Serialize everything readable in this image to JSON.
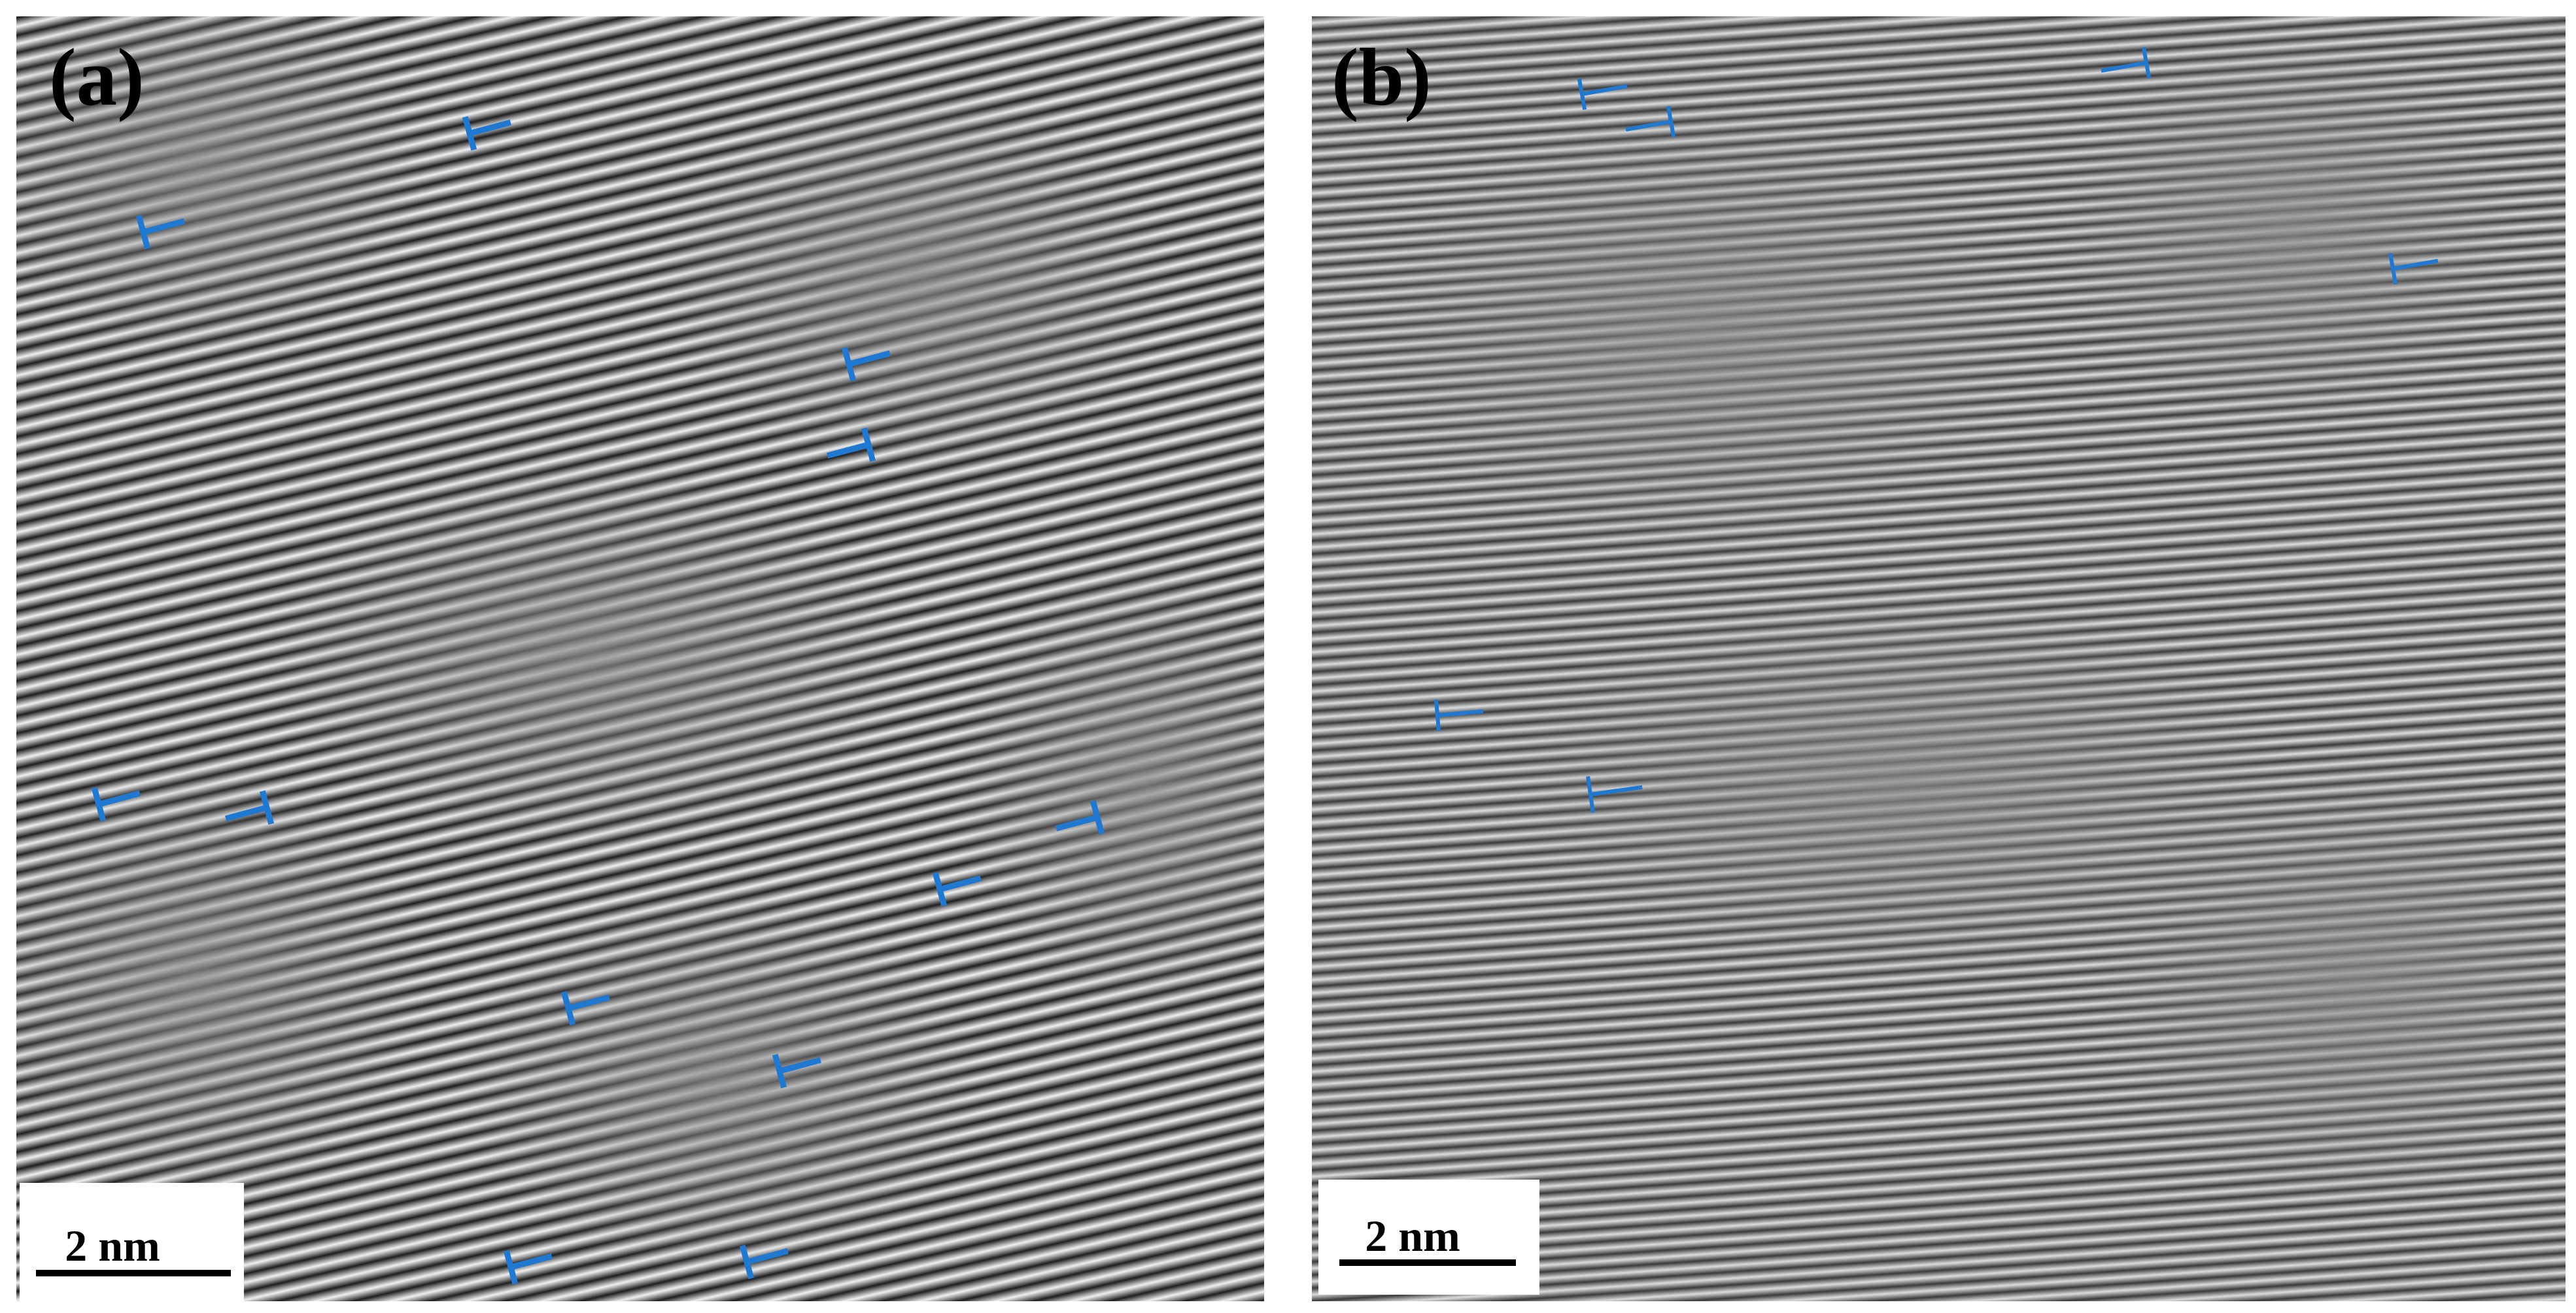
{
  "panels": [
    {
      "label": "(a)",
      "scale_bar": "2 nm"
    },
    {
      "label": "(b)",
      "scale_bar": "2 nm"
    }
  ]
}
